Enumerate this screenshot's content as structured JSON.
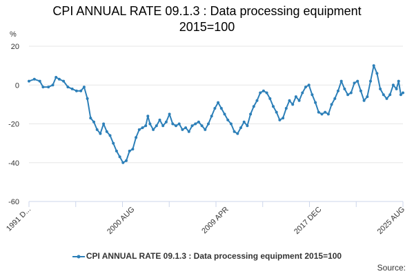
{
  "chart_data": {
    "type": "line",
    "title_line1": "CPI ANNUAL RATE 09.1.3 : Data processing equipment",
    "title_line2": "2015=100",
    "ylabel": "%",
    "xlabel": "",
    "ylim": [
      -60,
      20
    ],
    "yticks": [
      20,
      0,
      -20,
      -40,
      -60
    ],
    "xlim": [
      1991.0,
      2025.6
    ],
    "xtick_labels": [
      {
        "label": "1991 D...",
        "x": 1991.0
      },
      {
        "label": "2000 AUG",
        "x": 2000.6
      },
      {
        "label": "2009 APR",
        "x": 2009.3
      },
      {
        "label": "2017 DEC",
        "x": 2017.9
      },
      {
        "label": "2025 AUG",
        "x": 2025.6
      }
    ],
    "grid": true,
    "legend_position": "bottom",
    "series": [
      {
        "name": "CPI ANNUAL RATE 09.1.3 : Data processing equipment 2015=100",
        "color": "#2c7fb8",
        "points": [
          [
            1991.0,
            2
          ],
          [
            1991.5,
            3
          ],
          [
            1992.0,
            2
          ],
          [
            1992.3,
            -1
          ],
          [
            1992.8,
            -1
          ],
          [
            1993.2,
            0
          ],
          [
            1993.5,
            4
          ],
          [
            1993.8,
            3
          ],
          [
            1994.2,
            2
          ],
          [
            1994.6,
            -1
          ],
          [
            1995.0,
            -2
          ],
          [
            1995.4,
            -3
          ],
          [
            1995.8,
            -3
          ],
          [
            1996.1,
            -1
          ],
          [
            1996.4,
            -7
          ],
          [
            1996.7,
            -17
          ],
          [
            1997.0,
            -19
          ],
          [
            1997.3,
            -23
          ],
          [
            1997.6,
            -25
          ],
          [
            1997.9,
            -20
          ],
          [
            1998.2,
            -24
          ],
          [
            1998.5,
            -26
          ],
          [
            1998.8,
            -30
          ],
          [
            1999.1,
            -34
          ],
          [
            1999.4,
            -37
          ],
          [
            1999.7,
            -40
          ],
          [
            2000.0,
            -39
          ],
          [
            2000.3,
            -34
          ],
          [
            2000.6,
            -33
          ],
          [
            2000.9,
            -27
          ],
          [
            2001.2,
            -23
          ],
          [
            2001.5,
            -22
          ],
          [
            2001.8,
            -21
          ],
          [
            2002.0,
            -16
          ],
          [
            2002.2,
            -20
          ],
          [
            2002.5,
            -23
          ],
          [
            2002.8,
            -21
          ],
          [
            2003.1,
            -18
          ],
          [
            2003.4,
            -21
          ],
          [
            2003.7,
            -19
          ],
          [
            2004.0,
            -15
          ],
          [
            2004.3,
            -20
          ],
          [
            2004.6,
            -21
          ],
          [
            2004.9,
            -20
          ],
          [
            2005.2,
            -23
          ],
          [
            2005.5,
            -22
          ],
          [
            2005.8,
            -24
          ],
          [
            2006.1,
            -21
          ],
          [
            2006.4,
            -20
          ],
          [
            2006.7,
            -19
          ],
          [
            2007.0,
            -21
          ],
          [
            2007.3,
            -23
          ],
          [
            2007.6,
            -20
          ],
          [
            2007.9,
            -16
          ],
          [
            2008.2,
            -12
          ],
          [
            2008.5,
            -9
          ],
          [
            2008.8,
            -12
          ],
          [
            2009.1,
            -15
          ],
          [
            2009.4,
            -18
          ],
          [
            2009.7,
            -20
          ],
          [
            2010.0,
            -24
          ],
          [
            2010.3,
            -25
          ],
          [
            2010.6,
            -22
          ],
          [
            2010.9,
            -19
          ],
          [
            2011.2,
            -21
          ],
          [
            2011.5,
            -15
          ],
          [
            2011.8,
            -11
          ],
          [
            2012.1,
            -8
          ],
          [
            2012.4,
            -4
          ],
          [
            2012.7,
            -3
          ],
          [
            2013.0,
            -4
          ],
          [
            2013.3,
            -7
          ],
          [
            2013.6,
            -11
          ],
          [
            2013.9,
            -14
          ],
          [
            2014.2,
            -18
          ],
          [
            2014.5,
            -17
          ],
          [
            2014.8,
            -12
          ],
          [
            2015.1,
            -8
          ],
          [
            2015.4,
            -10
          ],
          [
            2015.7,
            -6
          ],
          [
            2016.0,
            -8
          ],
          [
            2016.3,
            -4
          ],
          [
            2016.6,
            -1
          ],
          [
            2016.9,
            0
          ],
          [
            2017.2,
            -5
          ],
          [
            2017.5,
            -9
          ],
          [
            2017.8,
            -14
          ],
          [
            2018.1,
            -15
          ],
          [
            2018.4,
            -14
          ],
          [
            2018.7,
            -15
          ],
          [
            2019.0,
            -10
          ],
          [
            2019.3,
            -7
          ],
          [
            2019.6,
            -3
          ],
          [
            2019.9,
            2
          ],
          [
            2020.2,
            -2
          ],
          [
            2020.5,
            -5
          ],
          [
            2020.8,
            -4
          ],
          [
            2021.1,
            1
          ],
          [
            2021.4,
            2
          ],
          [
            2021.7,
            -3
          ],
          [
            2022.0,
            -8
          ],
          [
            2022.3,
            -6
          ],
          [
            2022.6,
            2
          ],
          [
            2022.9,
            10
          ],
          [
            2023.2,
            6
          ],
          [
            2023.5,
            -2
          ],
          [
            2023.8,
            -5
          ],
          [
            2024.1,
            -7
          ],
          [
            2024.4,
            -5
          ],
          [
            2024.7,
            0
          ],
          [
            2025.0,
            -2
          ],
          [
            2025.2,
            2
          ],
          [
            2025.4,
            -5
          ],
          [
            2025.6,
            -4
          ]
        ]
      }
    ],
    "source_label": "Source:"
  }
}
